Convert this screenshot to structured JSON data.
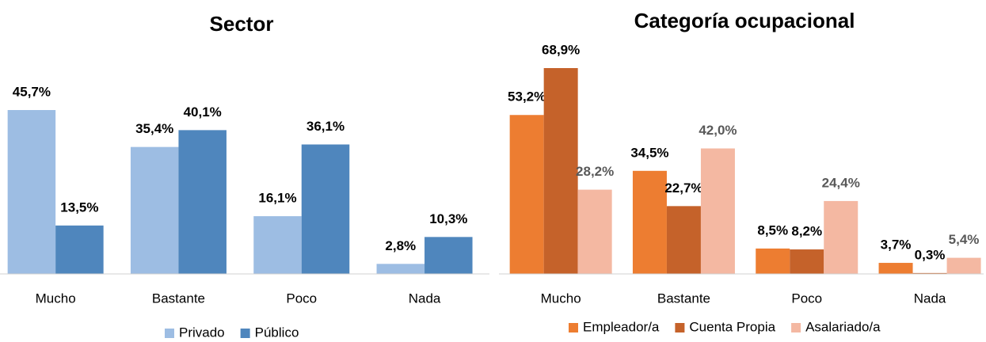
{
  "chart_data": [
    {
      "type": "bar",
      "title": "Sector",
      "categories": [
        "Mucho",
        "Bastante",
        "Poco",
        "Nada"
      ],
      "series": [
        {
          "name": "Privado",
          "color": "#9dbde3",
          "values": [
            45.7,
            35.4,
            16.1,
            2.8
          ],
          "value_labels": [
            "45,7%",
            "35,4%",
            "16,1%",
            "2,8%"
          ]
        },
        {
          "name": "Público",
          "color": "#4f86bd",
          "values": [
            13.5,
            40.1,
            36.1,
            10.3
          ],
          "value_labels": [
            "13,5%",
            "40,1%",
            "36,1%",
            "10,3%"
          ]
        }
      ]
    },
    {
      "type": "bar",
      "title": "Categoría ocupacional",
      "categories": [
        "Mucho",
        "Bastante",
        "Poco",
        "Nada"
      ],
      "series": [
        {
          "name": "Empleador/a",
          "color": "#ed7d31",
          "values": [
            53.2,
            34.5,
            8.5,
            3.7
          ],
          "value_labels": [
            "53,2%",
            "34,5%",
            "8,5%",
            "3,7%"
          ]
        },
        {
          "name": "Cuenta Propia",
          "color": "#c5622a",
          "values": [
            68.9,
            22.7,
            8.2,
            0.3
          ],
          "value_labels": [
            "68,9%",
            "22,7%",
            "8,2%",
            "0,3%"
          ]
        },
        {
          "name": "Asalariado/a",
          "color": "#f4b8a2",
          "label_color": "#595959",
          "values": [
            28.2,
            42.0,
            24.4,
            5.4
          ],
          "value_labels": [
            "28,2%",
            "42,0%",
            "24,4%",
            "5,4%"
          ]
        }
      ]
    }
  ]
}
